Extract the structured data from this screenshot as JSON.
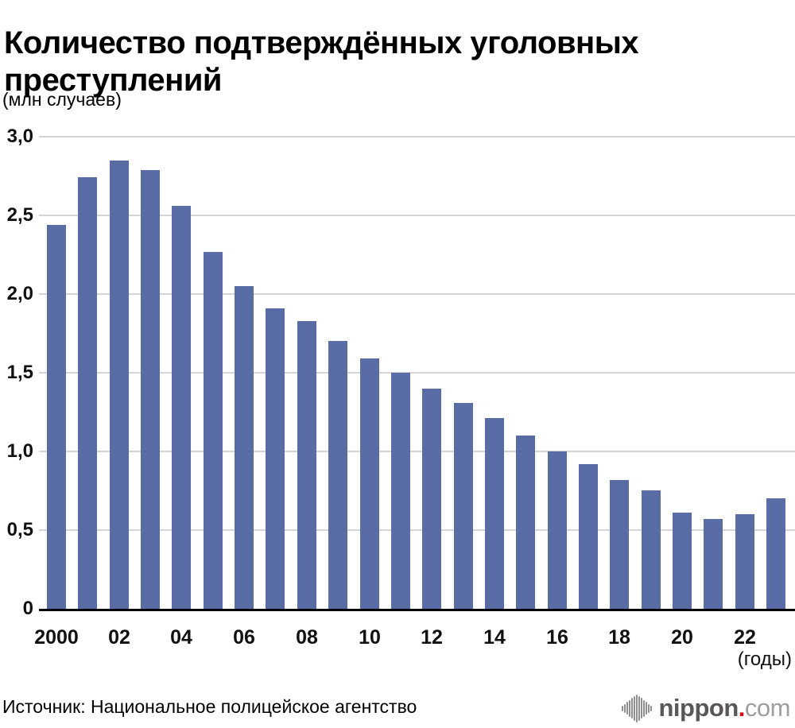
{
  "title": "Количество подтверждённых уголовных преступлений",
  "subtitle": "(млн случаев)",
  "chart_data": {
    "type": "bar",
    "x": [
      2000,
      2001,
      2002,
      2003,
      2004,
      2005,
      2006,
      2007,
      2008,
      2009,
      2010,
      2011,
      2012,
      2013,
      2014,
      2015,
      2016,
      2017,
      2018,
      2019,
      2020,
      2021,
      2022,
      2023
    ],
    "values": [
      2.44,
      2.74,
      2.85,
      2.79,
      2.56,
      2.27,
      2.05,
      1.91,
      1.83,
      1.7,
      1.59,
      1.5,
      1.4,
      1.31,
      1.21,
      1.1,
      1.0,
      0.92,
      0.82,
      0.75,
      0.61,
      0.57,
      0.6,
      0.7
    ],
    "title": "Количество подтверждённых уголовных преступлений",
    "ylabel_unit": "(млн случаев)",
    "xlabel_unit": "(годы)",
    "ylim": [
      0,
      3.0
    ],
    "grid": true,
    "legend": "none",
    "bar_color": "#5a6ca6",
    "yticks": [
      {
        "v": 3.0,
        "label": "3,0"
      },
      {
        "v": 2.5,
        "label": "2,5"
      },
      {
        "v": 2.0,
        "label": "2,0"
      },
      {
        "v": 1.5,
        "label": "1,5"
      },
      {
        "v": 1.0,
        "label": "1,0"
      },
      {
        "v": 0.5,
        "label": "0,5"
      },
      {
        "v": 0.0,
        "label": "0"
      }
    ],
    "xtick_labels": [
      "2000",
      "02",
      "04",
      "06",
      "08",
      "10",
      "12",
      "14",
      "16",
      "18",
      "20",
      "22"
    ]
  },
  "source": "Источник: Национальное полицейское агентство",
  "logo": {
    "name": "nippon.com",
    "icon": "soundwave-icon",
    "text_main": "nippon",
    "dot": ".",
    "text_suffix": "com",
    "color_main": "#595757",
    "color_dot": "#e60012",
    "color_suffix": "#9e9e9e"
  }
}
